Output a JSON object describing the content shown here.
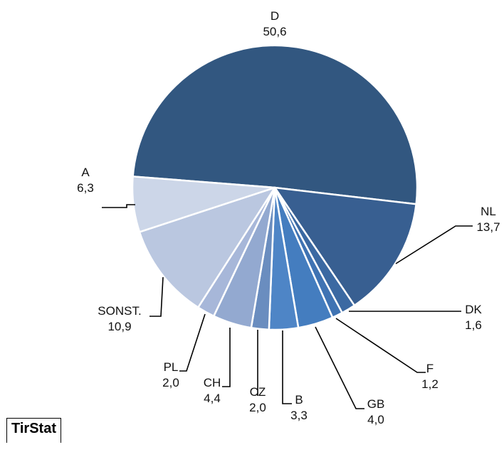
{
  "chart_data": {
    "type": "pie",
    "title": "",
    "slices": [
      {
        "label": "D",
        "value_label": "50,6",
        "value": 50.6,
        "color": "#325780"
      },
      {
        "label": "NL",
        "value_label": "13,7",
        "value": 13.7,
        "color": "#385f91"
      },
      {
        "label": "DK",
        "value_label": "1,6",
        "value": 1.6,
        "color": "#3b69a2"
      },
      {
        "label": "F",
        "value_label": "1,2",
        "value": 1.2,
        "color": "#3f73b3"
      },
      {
        "label": "GB",
        "value_label": "4,0",
        "value": 4.0,
        "color": "#447dbf"
      },
      {
        "label": "B",
        "value_label": "3,3",
        "value": 3.3,
        "color": "#4e85c6"
      },
      {
        "label": "CZ",
        "value_label": "2,0",
        "value": 2.0,
        "color": "#6a8dbf"
      },
      {
        "label": "CH",
        "value_label": "4,4",
        "value": 4.4,
        "color": "#93a9d0"
      },
      {
        "label": "PL",
        "value_label": "2,0",
        "value": 2.0,
        "color": "#a7b7d9"
      },
      {
        "label": "SONST.",
        "value_label": "10,9",
        "value": 10.9,
        "color": "#bac7e0"
      },
      {
        "label": "A",
        "value_label": "6,3",
        "value": 6.3,
        "color": "#ccd6e8"
      }
    ]
  },
  "watermark": "TirStat"
}
